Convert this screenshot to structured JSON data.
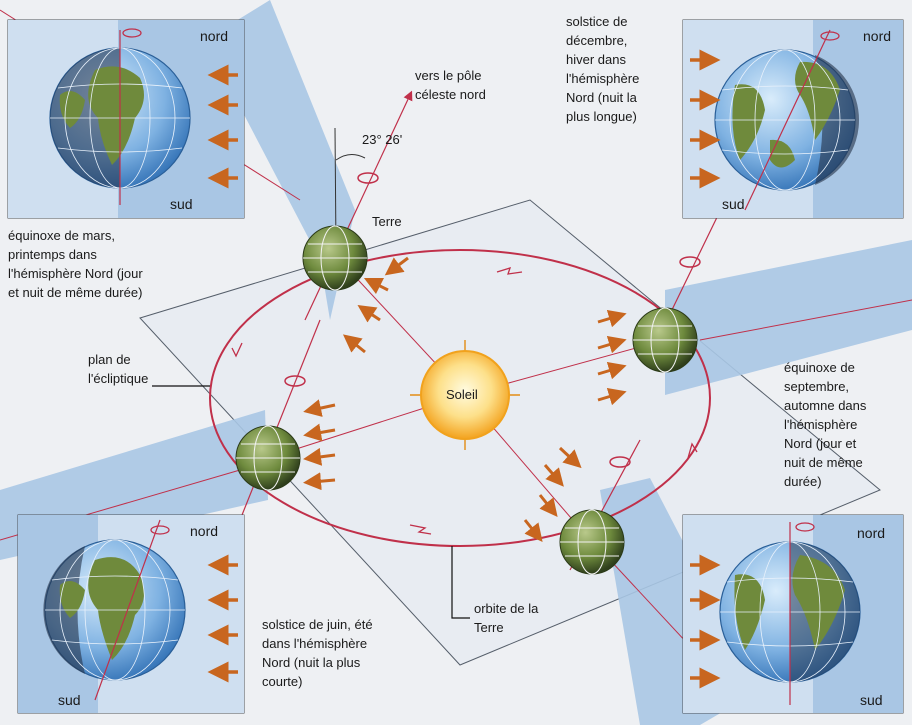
{
  "labels": {
    "celestial_pole": "vers le pôle\ncéleste nord",
    "axial_tilt": "23° 26'",
    "earth": "Terre",
    "sun": "Soleil",
    "march_equinox": "équinoxe de mars,\nprintemps dans\nl'hémisphère Nord (jour\net nuit de même durée)",
    "december_solstice": "solstice de\ndécembre,\nhiver dans\nl'hémisphère\nNord (nuit la\nplus longue)",
    "ecliptic_plane": "plan de\nl'écliptique",
    "september_equinox": "équinoxe de\nseptembre,\nautomne dans\nl'hémisphère\nNord (jour et\nnuit de même\ndurée)",
    "june_solstice": "solstice de juin, été\ndans l'hémisphère\nNord (nuit la plus\ncourte)",
    "earth_orbit": "orbite de la\nTerre"
  },
  "panels": {
    "top_left": {
      "north": "nord",
      "south": "sud"
    },
    "top_right": {
      "north": "nord",
      "south": "sud"
    },
    "bottom_left": {
      "north": "nord",
      "south": "sud"
    },
    "bottom_right": {
      "north": "nord",
      "south": "sud"
    }
  },
  "colors": {
    "background": "#eef0f3",
    "orbit": "#c0304a",
    "sun": "#f6b02c",
    "sun_glow": "#fde9a6",
    "panel_fill": "#aac8e6",
    "arrow": "#c8661f",
    "ocean": "#3d7fc7",
    "land": "#6f8a3c"
  }
}
